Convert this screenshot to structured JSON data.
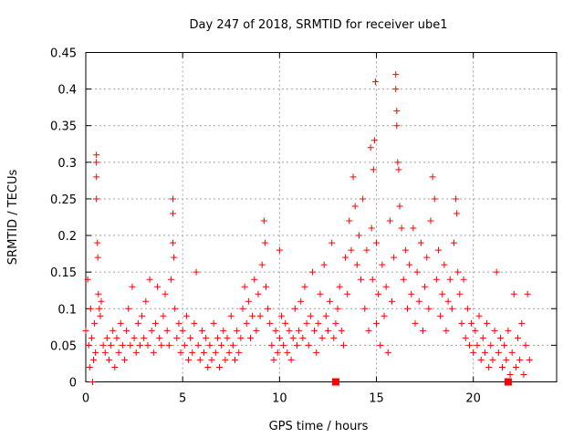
{
  "chart_data": {
    "type": "scatter",
    "title": "Day 247 of 2018, SRMTID for receiver ube1",
    "xlabel": "GPS time / hours",
    "ylabel": "SRMTID / TECUs",
    "xlim": [
      0,
      24.3
    ],
    "ylim": [
      0,
      0.45
    ],
    "x_ticks": [
      0,
      5,
      10,
      15,
      20
    ],
    "x_tick_labels": [
      "0",
      "5",
      "10",
      "15",
      "20"
    ],
    "y_ticks": [
      0,
      0.05,
      0.1,
      0.15,
      0.2,
      0.25,
      0.3,
      0.35,
      0.4,
      0.45
    ],
    "y_tick_labels": [
      "0",
      "0.05",
      "0.1",
      "0.15",
      "0.2",
      "0.25",
      "0.3",
      "0.35",
      "0.4",
      "0.45"
    ],
    "grid": true,
    "marker": "plus",
    "color": "#ff0000",
    "series": [
      {
        "name": "SRMTID",
        "points": [
          [
            0.0,
            0.07
          ],
          [
            0.1,
            0.14
          ],
          [
            0.15,
            0.05
          ],
          [
            0.2,
            0.02
          ],
          [
            0.25,
            0.1
          ],
          [
            0.3,
            0.06
          ],
          [
            0.35,
            0.0
          ],
          [
            0.4,
            0.03
          ],
          [
            0.45,
            0.08
          ],
          [
            0.5,
            0.04
          ],
          [
            0.55,
            0.31
          ],
          [
            0.55,
            0.3
          ],
          [
            0.55,
            0.28
          ],
          [
            0.55,
            0.25
          ],
          [
            0.6,
            0.19
          ],
          [
            0.62,
            0.17
          ],
          [
            0.65,
            0.12
          ],
          [
            0.7,
            0.1
          ],
          [
            0.75,
            0.09
          ],
          [
            0.8,
            0.11
          ],
          [
            0.9,
            0.05
          ],
          [
            1.0,
            0.04
          ],
          [
            1.1,
            0.06
          ],
          [
            1.2,
            0.03
          ],
          [
            1.3,
            0.05
          ],
          [
            1.4,
            0.07
          ],
          [
            1.5,
            0.02
          ],
          [
            1.6,
            0.06
          ],
          [
            1.7,
            0.04
          ],
          [
            1.8,
            0.08
          ],
          [
            1.9,
            0.05
          ],
          [
            2.0,
            0.03
          ],
          [
            2.1,
            0.07
          ],
          [
            2.2,
            0.1
          ],
          [
            2.3,
            0.05
          ],
          [
            2.4,
            0.13
          ],
          [
            2.5,
            0.06
          ],
          [
            2.6,
            0.04
          ],
          [
            2.7,
            0.08
          ],
          [
            2.8,
            0.05
          ],
          [
            2.9,
            0.09
          ],
          [
            3.0,
            0.06
          ],
          [
            3.1,
            0.11
          ],
          [
            3.2,
            0.05
          ],
          [
            3.3,
            0.14
          ],
          [
            3.4,
            0.07
          ],
          [
            3.5,
            0.04
          ],
          [
            3.6,
            0.08
          ],
          [
            3.7,
            0.13
          ],
          [
            3.8,
            0.06
          ],
          [
            3.9,
            0.05
          ],
          [
            4.0,
            0.09
          ],
          [
            4.1,
            0.12
          ],
          [
            4.2,
            0.07
          ],
          [
            4.3,
            0.05
          ],
          [
            4.4,
            0.14
          ],
          [
            4.5,
            0.25
          ],
          [
            4.5,
            0.23
          ],
          [
            4.5,
            0.19
          ],
          [
            4.55,
            0.17
          ],
          [
            4.6,
            0.1
          ],
          [
            4.7,
            0.06
          ],
          [
            4.8,
            0.08
          ],
          [
            4.9,
            0.04
          ],
          [
            5.0,
            0.07
          ],
          [
            5.1,
            0.05
          ],
          [
            5.2,
            0.09
          ],
          [
            5.3,
            0.03
          ],
          [
            5.4,
            0.06
          ],
          [
            5.5,
            0.04
          ],
          [
            5.6,
            0.08
          ],
          [
            5.7,
            0.15
          ],
          [
            5.8,
            0.05
          ],
          [
            5.9,
            0.03
          ],
          [
            6.0,
            0.07
          ],
          [
            6.1,
            0.04
          ],
          [
            6.2,
            0.06
          ],
          [
            6.3,
            0.02
          ],
          [
            6.4,
            0.05
          ],
          [
            6.5,
            0.03
          ],
          [
            6.6,
            0.08
          ],
          [
            6.7,
            0.04
          ],
          [
            6.8,
            0.06
          ],
          [
            6.9,
            0.02
          ],
          [
            7.0,
            0.05
          ],
          [
            7.1,
            0.07
          ],
          [
            7.2,
            0.03
          ],
          [
            7.3,
            0.06
          ],
          [
            7.4,
            0.04
          ],
          [
            7.5,
            0.09
          ],
          [
            7.6,
            0.05
          ],
          [
            7.7,
            0.03
          ],
          [
            7.8,
            0.07
          ],
          [
            7.9,
            0.04
          ],
          [
            8.0,
            0.06
          ],
          [
            8.1,
            0.1
          ],
          [
            8.2,
            0.13
          ],
          [
            8.3,
            0.08
          ],
          [
            8.4,
            0.11
          ],
          [
            8.5,
            0.06
          ],
          [
            8.6,
            0.09
          ],
          [
            8.7,
            0.14
          ],
          [
            8.8,
            0.07
          ],
          [
            8.9,
            0.12
          ],
          [
            9.0,
            0.09
          ],
          [
            9.1,
            0.16
          ],
          [
            9.2,
            0.22
          ],
          [
            9.25,
            0.19
          ],
          [
            9.3,
            0.13
          ],
          [
            9.4,
            0.1
          ],
          [
            9.5,
            0.08
          ],
          [
            9.6,
            0.05
          ],
          [
            9.7,
            0.03
          ],
          [
            9.8,
            0.07
          ],
          [
            9.9,
            0.04
          ],
          [
            10.0,
            0.06
          ],
          [
            10.0,
            0.18
          ],
          [
            10.1,
            0.09
          ],
          [
            10.2,
            0.05
          ],
          [
            10.3,
            0.08
          ],
          [
            10.4,
            0.04
          ],
          [
            10.5,
            0.07
          ],
          [
            10.6,
            0.03
          ],
          [
            10.7,
            0.06
          ],
          [
            10.8,
            0.1
          ],
          [
            10.9,
            0.05
          ],
          [
            11.0,
            0.07
          ],
          [
            11.1,
            0.11
          ],
          [
            11.2,
            0.06
          ],
          [
            11.3,
            0.13
          ],
          [
            11.4,
            0.08
          ],
          [
            11.5,
            0.05
          ],
          [
            11.6,
            0.09
          ],
          [
            11.7,
            0.15
          ],
          [
            11.8,
            0.07
          ],
          [
            11.9,
            0.04
          ],
          [
            12.0,
            0.08
          ],
          [
            12.1,
            0.12
          ],
          [
            12.2,
            0.06
          ],
          [
            12.3,
            0.16
          ],
          [
            12.4,
            0.09
          ],
          [
            12.5,
            0.07
          ],
          [
            12.6,
            0.11
          ],
          [
            12.7,
            0.19
          ],
          [
            12.8,
            0.06
          ],
          [
            12.9,
            0.08
          ],
          [
            13.0,
            0.1
          ],
          [
            13.1,
            0.13
          ],
          [
            13.2,
            0.07
          ],
          [
            13.3,
            0.05
          ],
          [
            13.4,
            0.17
          ],
          [
            13.5,
            0.12
          ],
          [
            13.6,
            0.22
          ],
          [
            13.7,
            0.18
          ],
          [
            13.8,
            0.28
          ],
          [
            13.9,
            0.24
          ],
          [
            14.0,
            0.16
          ],
          [
            14.1,
            0.2
          ],
          [
            14.2,
            0.14
          ],
          [
            14.3,
            0.25
          ],
          [
            14.4,
            0.1
          ],
          [
            14.5,
            0.18
          ],
          [
            14.6,
            0.07
          ],
          [
            14.7,
            0.32
          ],
          [
            14.75,
            0.21
          ],
          [
            14.8,
            0.14
          ],
          [
            14.85,
            0.29
          ],
          [
            14.9,
            0.33
          ],
          [
            14.95,
            0.41
          ],
          [
            15.0,
            0.19
          ],
          [
            15.0,
            0.08
          ],
          [
            15.1,
            0.12
          ],
          [
            15.2,
            0.05
          ],
          [
            15.3,
            0.16
          ],
          [
            15.4,
            0.09
          ],
          [
            15.5,
            0.13
          ],
          [
            15.6,
            0.04
          ],
          [
            15.7,
            0.22
          ],
          [
            15.8,
            0.11
          ],
          [
            15.9,
            0.17
          ],
          [
            16.0,
            0.42
          ],
          [
            16.0,
            0.4
          ],
          [
            16.05,
            0.37
          ],
          [
            16.05,
            0.35
          ],
          [
            16.1,
            0.3
          ],
          [
            16.15,
            0.29
          ],
          [
            16.2,
            0.24
          ],
          [
            16.3,
            0.21
          ],
          [
            16.4,
            0.14
          ],
          [
            16.5,
            0.18
          ],
          [
            16.6,
            0.1
          ],
          [
            16.7,
            0.16
          ],
          [
            16.8,
            0.12
          ],
          [
            16.9,
            0.21
          ],
          [
            17.0,
            0.08
          ],
          [
            17.1,
            0.15
          ],
          [
            17.2,
            0.11
          ],
          [
            17.3,
            0.19
          ],
          [
            17.4,
            0.07
          ],
          [
            17.5,
            0.13
          ],
          [
            17.6,
            0.17
          ],
          [
            17.7,
            0.1
          ],
          [
            17.8,
            0.22
          ],
          [
            17.9,
            0.28
          ],
          [
            18.0,
            0.25
          ],
          [
            18.1,
            0.14
          ],
          [
            18.2,
            0.18
          ],
          [
            18.3,
            0.09
          ],
          [
            18.4,
            0.12
          ],
          [
            18.5,
            0.16
          ],
          [
            18.6,
            0.07
          ],
          [
            18.7,
            0.11
          ],
          [
            18.8,
            0.14
          ],
          [
            18.9,
            0.1
          ],
          [
            19.0,
            0.19
          ],
          [
            19.1,
            0.25
          ],
          [
            19.15,
            0.23
          ],
          [
            19.2,
            0.15
          ],
          [
            19.3,
            0.12
          ],
          [
            19.4,
            0.08
          ],
          [
            19.5,
            0.14
          ],
          [
            19.6,
            0.06
          ],
          [
            19.7,
            0.1
          ],
          [
            19.8,
            0.05
          ],
          [
            19.9,
            0.08
          ],
          [
            20.0,
            0.04
          ],
          [
            20.1,
            0.07
          ],
          [
            20.2,
            0.05
          ],
          [
            20.3,
            0.09
          ],
          [
            20.4,
            0.03
          ],
          [
            20.5,
            0.06
          ],
          [
            20.6,
            0.04
          ],
          [
            20.7,
            0.08
          ],
          [
            20.8,
            0.02
          ],
          [
            20.9,
            0.05
          ],
          [
            21.0,
            0.03
          ],
          [
            21.1,
            0.07
          ],
          [
            21.2,
            0.15
          ],
          [
            21.3,
            0.04
          ],
          [
            21.4,
            0.06
          ],
          [
            21.5,
            0.02
          ],
          [
            21.6,
            0.05
          ],
          [
            21.7,
            0.03
          ],
          [
            21.8,
            0.07
          ],
          [
            21.9,
            0.01
          ],
          [
            22.0,
            0.04
          ],
          [
            22.1,
            0.12
          ],
          [
            22.2,
            0.02
          ],
          [
            22.3,
            0.06
          ],
          [
            22.4,
            0.03
          ],
          [
            22.5,
            0.08
          ],
          [
            22.6,
            0.01
          ],
          [
            22.7,
            0.05
          ],
          [
            22.8,
            0.12
          ],
          [
            22.9,
            0.03
          ]
        ],
        "gap_markers": [
          [
            12.9,
            0.0
          ],
          [
            21.8,
            0.0
          ]
        ]
      }
    ]
  }
}
